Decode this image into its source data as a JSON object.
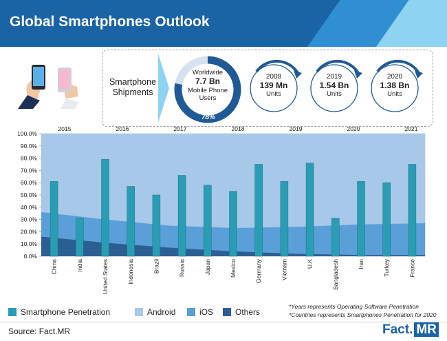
{
  "title": "Global Smartphones Outlook",
  "shipments_label": "Smartphone Shipments",
  "donut": {
    "line1": "Worldwide",
    "line2": "7.7 Bn",
    "line3": "Mobile Phone Users",
    "percent_label": "78%",
    "percent": 78
  },
  "stats": [
    {
      "year": "2008",
      "value": "139 Mn",
      "unit": "Units"
    },
    {
      "year": "2019",
      "value": "1.54 Bn",
      "unit": "Units"
    },
    {
      "year": "2020",
      "value": "1.38 Bn",
      "unit": "Units"
    }
  ],
  "legend": [
    "Smartphone Penetration",
    "Android",
    "iOS",
    "Others"
  ],
  "notes": [
    "*Years represents Operating Software Penetration",
    "*Countries represents Smartphones Penetration for 2020"
  ],
  "source": "Source: Fact.MR",
  "brand": {
    "fact": "Fact.",
    "mr": "MR"
  },
  "colors": {
    "header": "#1a63a5",
    "penetration": "#2a9cb3",
    "android": "#a7c8e8",
    "ios": "#5a9fd8",
    "others": "#2c5f91"
  },
  "chart_data": {
    "type": "bar",
    "title": "",
    "xlabel": "",
    "ylabel": "",
    "ylim": [
      0,
      100
    ],
    "yticks": [
      "0.0%",
      "10.0%",
      "20.0%",
      "30.0%",
      "40.0%",
      "50.0%",
      "60.0%",
      "70.0%",
      "80.0%",
      "90.0%",
      "100.0%"
    ],
    "categories": [
      "China",
      "India",
      "United States",
      "Indonesia",
      "Brazil",
      "Russia",
      "Japan",
      "Mexico",
      "Germany",
      "Vietnam",
      "U.K",
      "Bangladesh",
      "Iran",
      "Turkey",
      "France"
    ],
    "bar_series": {
      "name": "Smartphone Penetration",
      "values": [
        61,
        31,
        79,
        57,
        50,
        66,
        58,
        53,
        75,
        61,
        76,
        31,
        61,
        60,
        75
      ]
    },
    "years": [
      "2015",
      "2016",
      "2017",
      "2018",
      "2019",
      "2020",
      "2021"
    ],
    "area_series": [
      {
        "name": "Others",
        "values": [
          16,
          11,
          7,
          4,
          2,
          1,
          1
        ]
      },
      {
        "name": "iOS",
        "values": [
          36,
          30,
          25,
          23,
          24,
          26,
          27
        ]
      },
      {
        "name": "Android",
        "values": [
          100,
          100,
          100,
          100,
          100,
          100,
          100
        ]
      }
    ]
  }
}
